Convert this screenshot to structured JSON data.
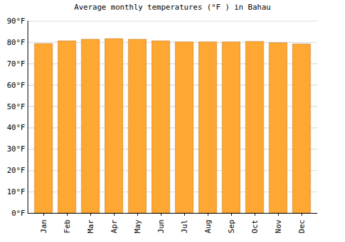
{
  "chart_data": {
    "type": "bar",
    "title": "Average monthly temperatures (°F ) in Bahau",
    "categories": [
      "Jan",
      "Feb",
      "Mar",
      "Apr",
      "May",
      "Jun",
      "Jul",
      "Aug",
      "Sep",
      "Oct",
      "Nov",
      "Dec"
    ],
    "values": [
      79.3,
      80.6,
      81.3,
      81.6,
      81.3,
      80.6,
      80.1,
      80.1,
      80.1,
      80.3,
      79.7,
      79.1
    ],
    "color": "#ffa733",
    "ylim": [
      0,
      90
    ],
    "yticks": [
      {
        "value": 0,
        "label": "0°F"
      },
      {
        "value": 10,
        "label": "10°F"
      },
      {
        "value": 20,
        "label": "20°F"
      },
      {
        "value": 30,
        "label": "30°F"
      },
      {
        "value": 40,
        "label": "40°F"
      },
      {
        "value": 50,
        "label": "50°F"
      },
      {
        "value": 60,
        "label": "60°F"
      },
      {
        "value": 70,
        "label": "70°F"
      },
      {
        "value": 80,
        "label": "80°F"
      },
      {
        "value": 90,
        "label": "90°F"
      }
    ],
    "grid": true
  }
}
